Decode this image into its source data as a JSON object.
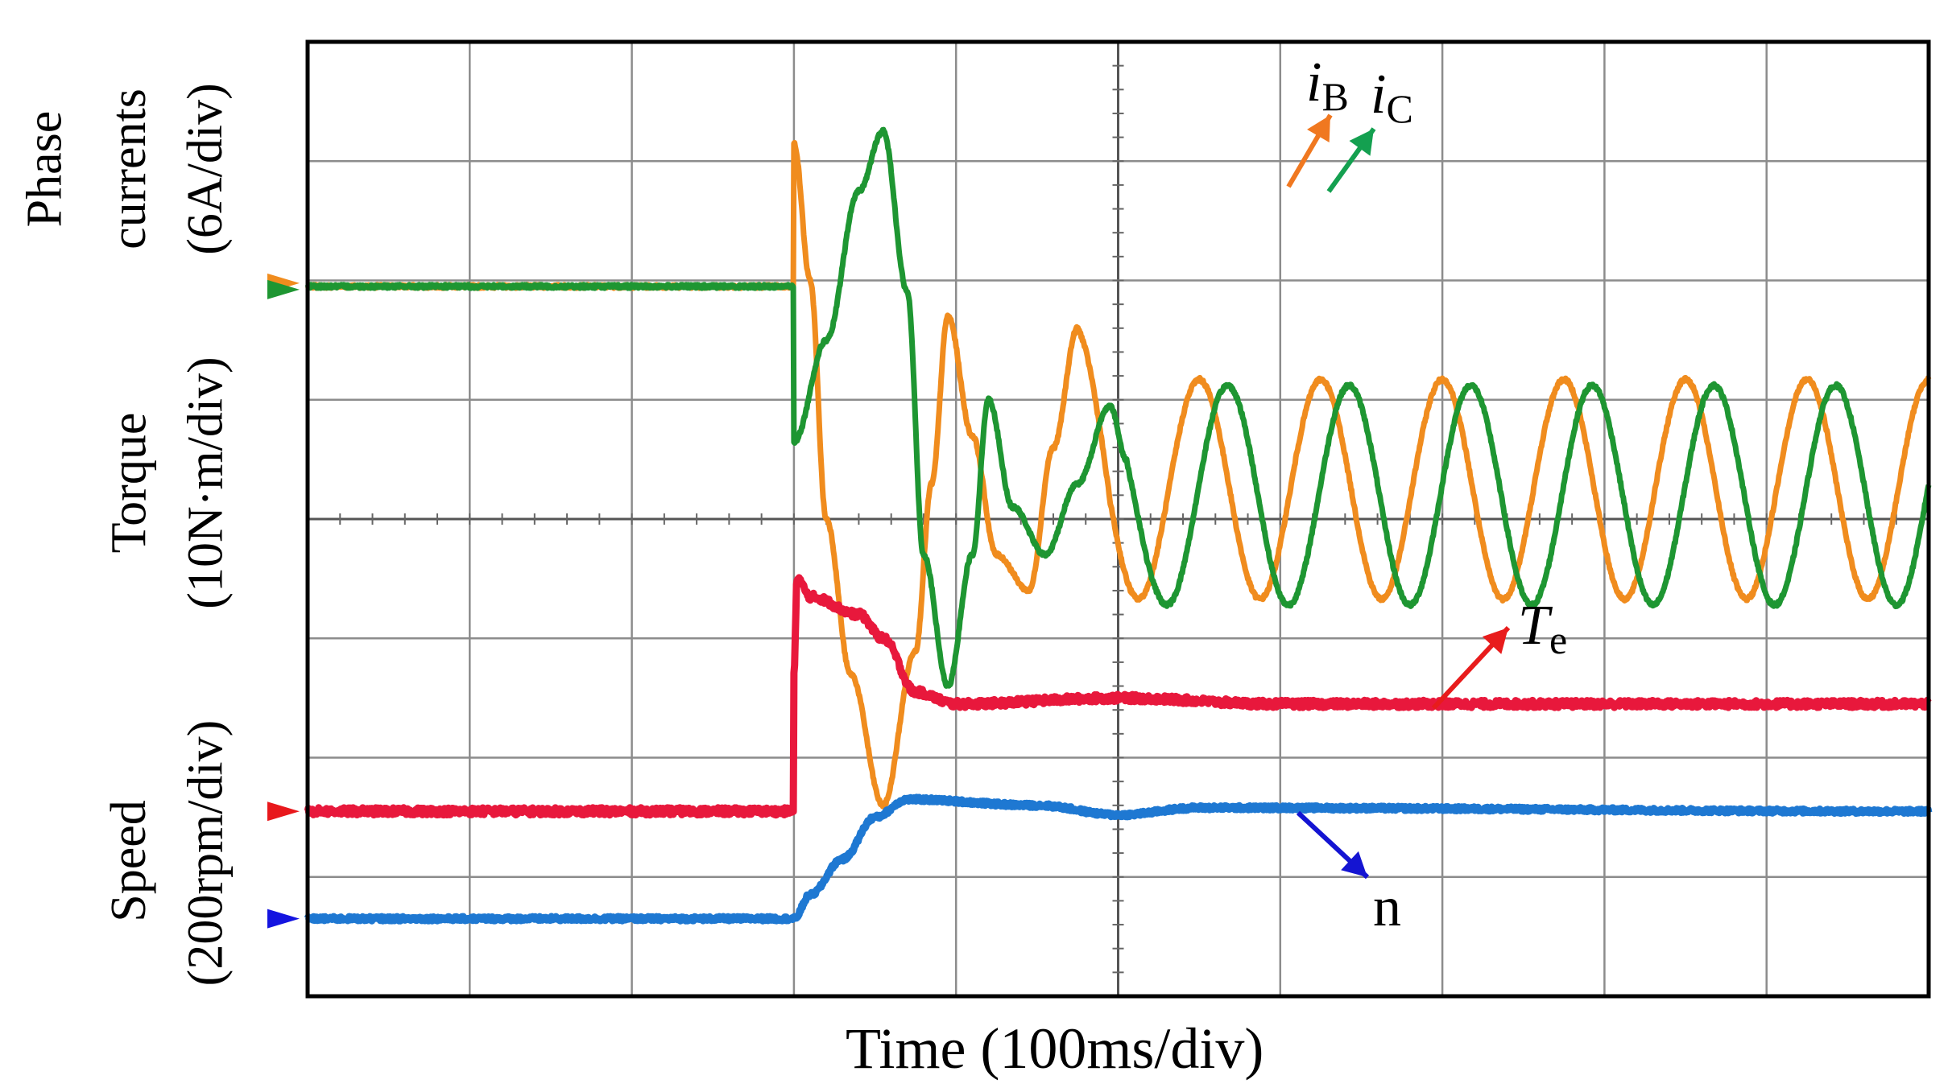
{
  "chart_data": {
    "type": "line",
    "title": "",
    "xlabel": "Time (100ms/div)",
    "x_range_div": [
      0,
      10
    ],
    "y_range_div": [
      -4,
      4
    ],
    "grid": true,
    "ylabels": {
      "phase": [
        "Phase",
        "currents",
        "(6A/div)"
      ],
      "torque": [
        "Torque",
        "(10N·m/div)"
      ],
      "speed": [
        "Speed",
        "(200rpm/div)"
      ]
    },
    "series": [
      {
        "name": "i_B",
        "symbol": "i",
        "sub": "B",
        "color": "#f08c1e",
        "zero_div": 1.95,
        "step_div": 3.0,
        "points_div": [
          [
            3.0,
            3.15
          ],
          [
            3.1,
            2.0
          ],
          [
            3.2,
            0.0
          ],
          [
            3.35,
            -1.3
          ],
          [
            3.55,
            -2.4
          ],
          [
            3.75,
            -1.1
          ],
          [
            3.85,
            0.3
          ],
          [
            3.95,
            1.7
          ],
          [
            4.1,
            0.7
          ],
          [
            4.25,
            -0.3
          ],
          [
            4.45,
            -0.6
          ],
          [
            4.6,
            0.6
          ],
          [
            4.75,
            1.6
          ]
        ],
        "steady_period_div": 0.75,
        "steady_amplitude_div": 0.92,
        "steady_offset_div": 0.25,
        "steady_start_div": 4.75,
        "steady_phase_deg": 90
      },
      {
        "name": "i_C",
        "symbol": "i",
        "sub": "C",
        "color": "#1e9632",
        "zero_div": 1.95,
        "step_div": 3.0,
        "points_div": [
          [
            3.0,
            0.65
          ],
          [
            3.2,
            1.5
          ],
          [
            3.4,
            2.75
          ],
          [
            3.55,
            3.25
          ],
          [
            3.7,
            1.9
          ],
          [
            3.8,
            -0.3
          ],
          [
            3.95,
            -1.4
          ],
          [
            4.1,
            -0.3
          ],
          [
            4.2,
            1.0
          ],
          [
            4.35,
            0.1
          ],
          [
            4.55,
            -0.3
          ],
          [
            4.75,
            0.3
          ],
          [
            4.95,
            0.95
          ],
          [
            5.05,
            0.5
          ]
        ],
        "steady_period_div": 0.75,
        "steady_amplitude_div": 0.92,
        "steady_offset_div": 0.2,
        "steady_start_div": 5.05,
        "steady_phase_deg": 150
      },
      {
        "name": "T_e",
        "symbol": "T",
        "sub": "e",
        "color": "#e8183c",
        "zero_div": -2.45,
        "step_div": 3.0,
        "points_div": [
          [
            3.0,
            -1.3
          ],
          [
            3.02,
            -0.5
          ],
          [
            3.1,
            -0.65
          ],
          [
            3.4,
            -0.8
          ],
          [
            3.55,
            -1.0
          ],
          [
            3.75,
            -1.45
          ],
          [
            4.0,
            -1.55
          ],
          [
            5.0,
            -1.5
          ],
          [
            6.0,
            -1.55
          ],
          [
            10.0,
            -1.55
          ]
        ]
      },
      {
        "name": "n",
        "symbol": "n",
        "sub": "",
        "color": "#1e78d2",
        "zero_div": -3.35,
        "step_div": 3.0,
        "points_div": [
          [
            3.0,
            -3.35
          ],
          [
            3.1,
            -3.15
          ],
          [
            3.3,
            -2.85
          ],
          [
            3.5,
            -2.5
          ],
          [
            3.7,
            -2.35
          ],
          [
            4.5,
            -2.4
          ],
          [
            5.0,
            -2.48
          ],
          [
            5.5,
            -2.42
          ],
          [
            10.0,
            -2.45
          ]
        ]
      }
    ],
    "annotations": [
      {
        "label_symbol": "i",
        "label_sub": "B",
        "target": "i_B"
      },
      {
        "label_symbol": "i",
        "label_sub": "C",
        "target": "i_C"
      },
      {
        "label_symbol": "T",
        "label_sub": "e",
        "target": "T_e"
      },
      {
        "label_symbol": "n",
        "label_sub": "",
        "target": "n"
      }
    ],
    "arrow_colors": {
      "i_B": "#f07820",
      "i_C": "#14a050",
      "T_e": "#e81c1c",
      "n": "#1414d2"
    }
  }
}
